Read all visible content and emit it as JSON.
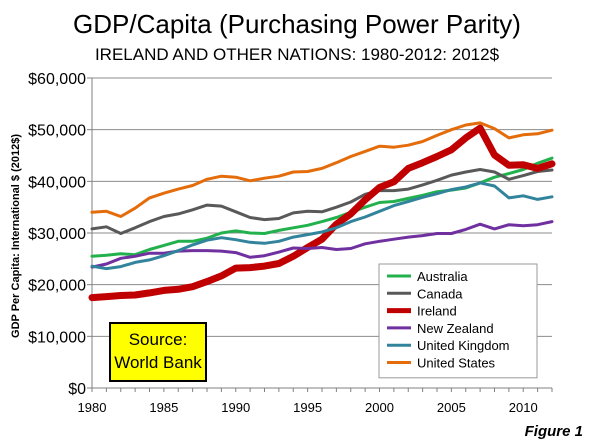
{
  "chart_data": {
    "type": "line",
    "title": "GDP/Capita (Purchasing Power Parity)",
    "subtitle": "IRELAND AND OTHER NATIONS: 1980-2012: 2012$",
    "xlabel": "",
    "ylabel": "GDP Per Capita: International $ (2012$)",
    "figure_label": "Figure 1",
    "source_box": [
      "Source:",
      "World Bank"
    ],
    "x": [
      1980,
      1981,
      1982,
      1983,
      1984,
      1985,
      1986,
      1987,
      1988,
      1989,
      1990,
      1991,
      1992,
      1993,
      1994,
      1995,
      1996,
      1997,
      1998,
      1999,
      2000,
      2001,
      2002,
      2003,
      2004,
      2005,
      2006,
      2007,
      2008,
      2009,
      2010,
      2011,
      2012
    ],
    "xlim": [
      1980,
      2012
    ],
    "x_ticks": [
      1980,
      1985,
      1990,
      1995,
      2000,
      2005,
      2010
    ],
    "x_tick_labels": [
      "1980",
      "1985",
      "1990",
      "1995",
      "2000",
      "2005",
      "2010"
    ],
    "ylim": [
      0,
      60000
    ],
    "y_ticks": [
      0,
      10000,
      20000,
      30000,
      40000,
      50000,
      60000
    ],
    "y_tick_labels": [
      "$0",
      "$10,000",
      "$20,000",
      "$30,000",
      "$40,000",
      "$50,000",
      "$60,000"
    ],
    "grid": "horizontal",
    "legend_position": "bottom-right",
    "series": [
      {
        "name": "Australia",
        "color": "#22b14c",
        "width": 3,
        "values": [
          25500,
          25700,
          26000,
          25800,
          26800,
          27600,
          28400,
          28400,
          29000,
          30000,
          30400,
          30000,
          29900,
          30500,
          31000,
          31500,
          32200,
          33000,
          34000,
          35000,
          35900,
          36100,
          36700,
          37300,
          38000,
          38300,
          38700,
          39700,
          40800,
          41500,
          42300,
          43500,
          44500
        ]
      },
      {
        "name": "Canada",
        "color": "#595959",
        "width": 3,
        "values": [
          30800,
          31200,
          29900,
          31000,
          32200,
          33200,
          33700,
          34500,
          35400,
          35200,
          34100,
          33000,
          32600,
          32800,
          33900,
          34200,
          34100,
          35000,
          36000,
          37500,
          38200,
          38200,
          38500,
          39300,
          40200,
          41200,
          41800,
          42300,
          41800,
          40400,
          41100,
          41900,
          42200
        ]
      },
      {
        "name": "Ireland",
        "color": "#c00000",
        "width": 7,
        "values": [
          17500,
          17700,
          17900,
          18000,
          18400,
          18900,
          19100,
          19600,
          20600,
          21700,
          23200,
          23300,
          23600,
          24100,
          25500,
          27200,
          28800,
          31700,
          33700,
          36400,
          38800,
          39900,
          42500,
          43600,
          44800,
          46100,
          48400,
          50300,
          45100,
          43100,
          43200,
          42500,
          43400
        ]
      },
      {
        "name": "New Zealand",
        "color": "#7030a0",
        "width": 3,
        "values": [
          23400,
          24000,
          25100,
          25500,
          26100,
          26100,
          26500,
          26600,
          26600,
          26500,
          26200,
          25300,
          25600,
          26300,
          27100,
          27000,
          27200,
          26800,
          27000,
          27900,
          28400,
          28800,
          29200,
          29500,
          29900,
          29900,
          30700,
          31700,
          30800,
          31600,
          31400,
          31600,
          32200
        ]
      },
      {
        "name": "United Kingdom",
        "color": "#31849b",
        "width": 3,
        "values": [
          23600,
          23100,
          23500,
          24300,
          24800,
          25600,
          26600,
          27700,
          28600,
          29100,
          28700,
          28200,
          28000,
          28400,
          29200,
          29700,
          30200,
          31000,
          32200,
          33100,
          34200,
          35300,
          36100,
          36900,
          37600,
          38400,
          38900,
          39700,
          39100,
          36800,
          37200,
          36500,
          37000
        ]
      },
      {
        "name": "United States",
        "color": "#e46c0a",
        "width": 3,
        "values": [
          34000,
          34200,
          33200,
          34800,
          36800,
          37700,
          38500,
          39200,
          40400,
          41000,
          40800,
          40100,
          40600,
          41000,
          41800,
          41900,
          42500,
          43600,
          44800,
          45800,
          46800,
          46600,
          47000,
          47700,
          48900,
          50000,
          50900,
          51300,
          50200,
          48400,
          49000,
          49200,
          49900
        ]
      }
    ]
  }
}
